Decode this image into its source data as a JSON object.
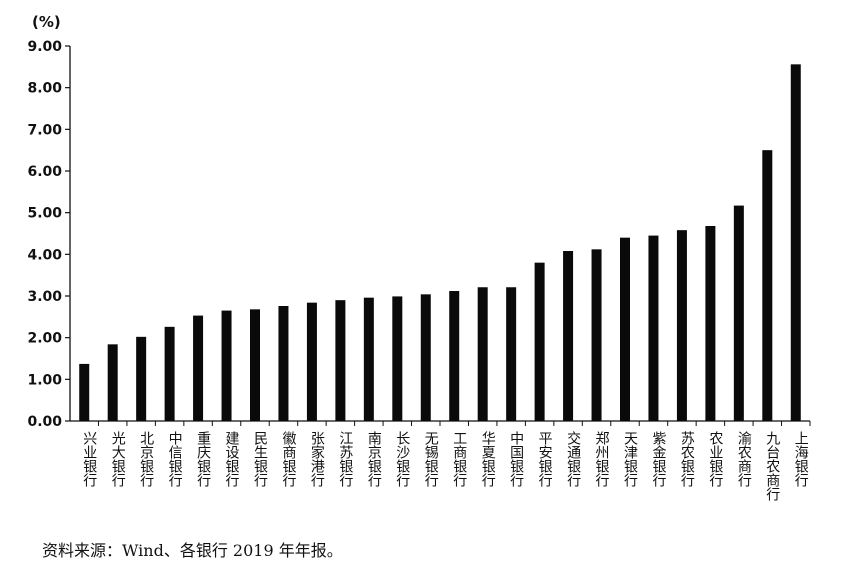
{
  "chart_data": {
    "type": "bar",
    "y_unit_label": "(%)",
    "ylim": [
      0,
      9
    ],
    "y_ticks": [
      "0.00",
      "1.00",
      "2.00",
      "3.00",
      "4.00",
      "5.00",
      "6.00",
      "7.00",
      "8.00",
      "9.00"
    ],
    "grid": false,
    "categories": [
      "兴业银行",
      "光大银行",
      "北京银行",
      "中信银行",
      "重庆银行",
      "建设银行",
      "民生银行",
      "徽商银行",
      "张家港行",
      "江苏银行",
      "南京银行",
      "长沙银行",
      "无锡银行",
      "工商银行",
      "华夏银行",
      "中国银行",
      "平安银行",
      "交通银行",
      "郑州银行",
      "天津银行",
      "紫金银行",
      "苏农银行",
      "农业银行",
      "渝农商行",
      "九台农商行",
      "上海银行"
    ],
    "values": [
      1.37,
      1.84,
      2.02,
      2.26,
      2.53,
      2.65,
      2.68,
      2.76,
      2.84,
      2.9,
      2.96,
      2.99,
      3.04,
      3.12,
      3.21,
      3.21,
      3.8,
      4.08,
      4.12,
      4.4,
      4.45,
      4.58,
      4.68,
      5.17,
      6.5,
      8.56
    ]
  },
  "source": "资料来源：Wind、各银行 2019 年年报。"
}
